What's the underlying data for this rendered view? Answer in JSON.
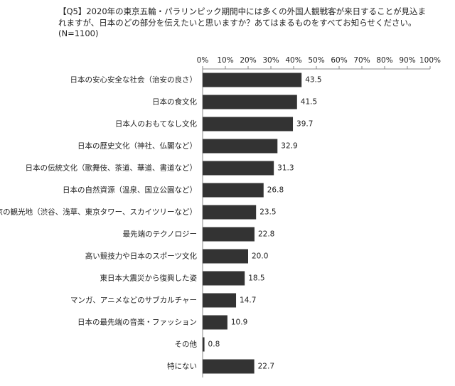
{
  "chart_data": {
    "type": "barh",
    "title": "【Q5】2020年の東京五輪・パラリンピック期間中には多くの外国人観戦客が来日することが見込まれますが、日本のどの部分を伝えたいと思いますか？あてはまるものをすべてお知らせください。",
    "subtitle": "(N=1100)",
    "categories": [
      "日本の安心安全な社会（治安の良さ）",
      "日本の食文化",
      "日本人のおもてなし文化",
      "日本の歴史文化（神社、仏閣など）",
      "日本の伝統文化（歌舞伎、茶道、華道、書道など）",
      "日本の自然資源（温泉、国立公園など）",
      "東京の観光地（渋谷、浅草、東京タワー、スカイツリーなど）",
      "最先端のテクノロジー",
      "高い競技力や日本のスポーツ文化",
      "東日本大震災から復興した姿",
      "マンガ、アニメなどのサブカルチャー",
      "日本の最先端の音楽・ファッション",
      "その他",
      "特にない"
    ],
    "values": [
      43.5,
      41.5,
      39.7,
      32.9,
      31.3,
      26.8,
      23.5,
      22.8,
      20.0,
      18.5,
      14.7,
      10.9,
      0.8,
      22.7
    ],
    "value_labels": [
      "43.5",
      "41.5",
      "39.7",
      "32.9",
      "31.3",
      "26.8",
      "23.5",
      "22.8",
      "20.0",
      "18.5",
      "14.7",
      "10.9",
      "0.8",
      "22.7"
    ],
    "color": "#333333",
    "xlim": [
      0,
      100
    ],
    "xticks": [
      {
        "value": 0,
        "label": "0%"
      },
      {
        "value": 10,
        "label": "10%"
      },
      {
        "value": 20,
        "label": "20%"
      },
      {
        "value": 30,
        "label": "30%"
      },
      {
        "value": 40,
        "label": "40%"
      },
      {
        "value": 50,
        "label": "50%"
      },
      {
        "value": 60,
        "label": "60%"
      },
      {
        "value": 70,
        "label": "70%"
      },
      {
        "value": 80,
        "label": "80%"
      },
      {
        "value": 90,
        "label": "90%"
      },
      {
        "value": 100,
        "label": "100%"
      }
    ],
    "grid": false
  }
}
